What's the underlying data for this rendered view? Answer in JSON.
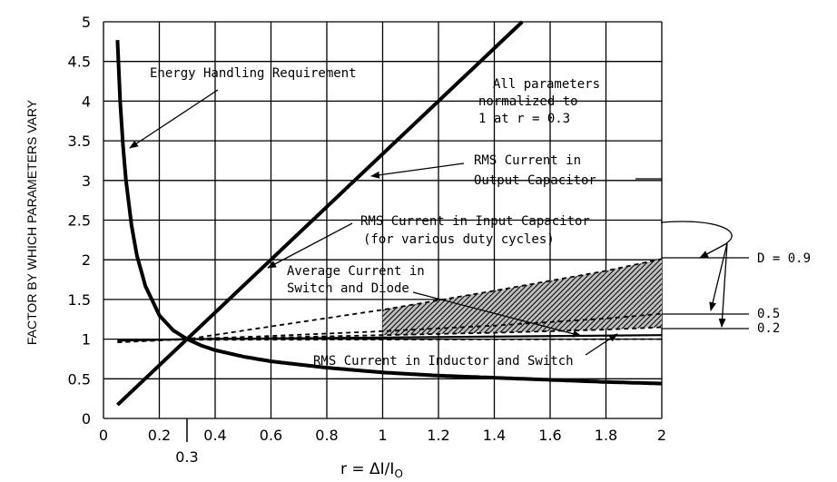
{
  "chart_data": {
    "type": "line",
    "title": "",
    "xlabel": "r = ΔI/I",
    "xlabel_sub": "O",
    "ylabel": "FACTOR BY WHICH PARAMETERS VARY",
    "xlim": [
      0,
      2
    ],
    "ylim": [
      0,
      5
    ],
    "x_ticks": [
      0,
      0.2,
      0.4,
      0.6,
      0.8,
      1,
      1.2,
      1.4,
      1.6,
      1.8,
      2
    ],
    "x_tick_labels": [
      "0",
      "0.2",
      "0.4",
      "0.6",
      "0.8",
      "1",
      "1.2",
      "1.4",
      "1.6",
      "1.8",
      "2"
    ],
    "y_ticks": [
      0,
      0.5,
      1,
      1.5,
      2,
      2.5,
      3,
      3.5,
      4,
      4.5,
      5
    ],
    "y_tick_labels": [
      "0",
      "0.5",
      "1",
      "1.5",
      "2",
      "2.5",
      "3",
      "3.5",
      "4",
      "4.5",
      "5"
    ],
    "grid": true,
    "highlight_x_label": "0.3",
    "series": [
      {
        "name": "Energy Handling Requirement",
        "style": "solid-thick",
        "x": [
          0.05,
          0.06,
          0.07,
          0.08,
          0.1,
          0.12,
          0.15,
          0.2,
          0.25,
          0.3,
          0.35,
          0.4,
          0.5,
          0.6,
          0.8,
          1.0,
          1.2,
          1.5,
          1.8,
          2.0
        ],
        "y": [
          4.77,
          3.99,
          3.44,
          3.02,
          2.44,
          2.05,
          1.67,
          1.3,
          1.11,
          1.0,
          0.92,
          0.86,
          0.78,
          0.72,
          0.64,
          0.58,
          0.54,
          0.5,
          0.46,
          0.44
        ]
      },
      {
        "name": "RMS Current in Output Capacitor",
        "style": "solid-thick",
        "x": [
          0.05,
          1.5
        ],
        "y": [
          0.17,
          5.0
        ]
      },
      {
        "name": "RMS Current in Input Capacitor D = 0.9",
        "style": "dashed",
        "x": [
          0.05,
          0.3,
          0.6,
          1.0,
          1.4,
          1.8,
          2.0
        ],
        "y": [
          0.96,
          1.0,
          1.16,
          1.37,
          1.61,
          1.86,
          2.01
        ]
      },
      {
        "name": "RMS Current in Input Capacitor D = 0.5",
        "style": "dashed",
        "x": [
          0.05,
          0.3,
          0.6,
          1.0,
          1.4,
          1.8,
          2.0
        ],
        "y": [
          0.96,
          1.0,
          1.04,
          1.1,
          1.17,
          1.26,
          1.32
        ]
      },
      {
        "name": "RMS Current in Input Capacitor D = 0.2",
        "style": "dashed",
        "x": [
          0.05,
          0.3,
          0.6,
          1.0,
          1.4,
          1.8,
          2.0
        ],
        "y": [
          0.97,
          1.0,
          1.02,
          1.05,
          1.08,
          1.12,
          1.15
        ]
      },
      {
        "name": "Average Current in Switch and Diode",
        "style": "dashed",
        "x": [
          0.05,
          2.0
        ],
        "y": [
          0.99,
          1.0
        ]
      },
      {
        "name": "RMS Current in Inductor and Switch",
        "style": "solid",
        "x": [
          0.05,
          0.3,
          1.0,
          2.0
        ],
        "y": [
          0.98,
          1.0,
          1.02,
          1.05
        ]
      }
    ],
    "shaded_region": {
      "x_from": 1.0,
      "x_to": 2.0,
      "between": [
        "RMS Current in Input Capacitor D = 0.2",
        "RMS Current in Input Capacitor D = 0.9"
      ]
    },
    "annotations": {
      "energy": "Energy Handling Requirement",
      "normalized": [
        "All parameters",
        "normalized to",
        "1 at r = 0.3"
      ],
      "output_cap": [
        "RMS Current in",
        "Output Capacitor"
      ],
      "input_cap": [
        "RMS Current in Input Capacitor",
        "(for various duty cycles)"
      ],
      "avg_current": [
        "Average Current in",
        "Switch and Diode"
      ],
      "rms_inductor": "RMS Current in Inductor and Switch",
      "d_labels": [
        "D = 0.9",
        "0.5",
        "0.2"
      ]
    },
    "colors": {
      "line": "#000000",
      "grid": "#000000",
      "background": "#ffffff"
    }
  }
}
